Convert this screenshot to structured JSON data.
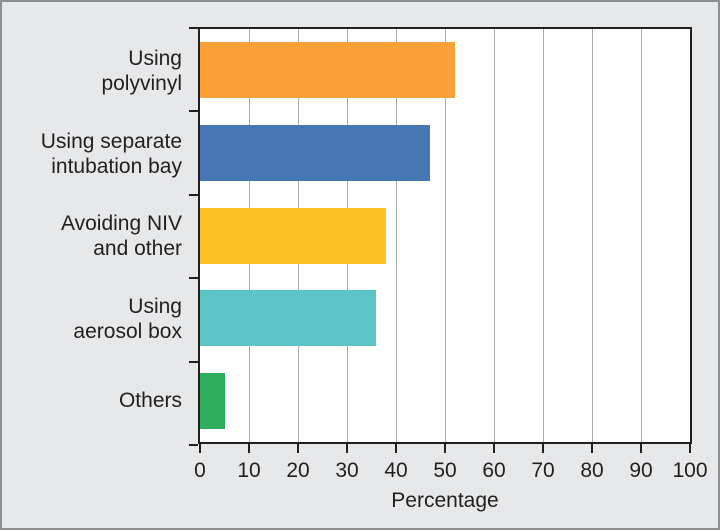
{
  "chart_data": {
    "type": "bar",
    "orientation": "horizontal",
    "title": "",
    "xlabel": "Percentage",
    "ylabel": "",
    "categories": [
      "Using polyvinyl",
      "Using separate intubation bay",
      "Avoiding NIV and other",
      "Using aerosol box",
      "Others"
    ],
    "category_label_lines": [
      [
        "Using",
        "polyvinyl"
      ],
      [
        "Using separate",
        "intubation bay"
      ],
      [
        "Avoiding NIV",
        "and other"
      ],
      [
        "Using",
        "aerosol box"
      ],
      [
        "Others"
      ]
    ],
    "values": [
      52,
      47,
      38,
      36,
      5
    ],
    "bar_colors": [
      "#f7a137",
      "#4677b4",
      "#fdc125",
      "#5bc6c5",
      "#2ead5e"
    ],
    "x_ticks": [
      0,
      10,
      20,
      30,
      40,
      50,
      60,
      70,
      80,
      90,
      100
    ],
    "xlim": [
      0,
      100
    ],
    "grid": "vertical",
    "legend": "none",
    "plot_background": "#ffffff",
    "figure_background": "#e7e8e9",
    "grid_color": "#a7a9ac",
    "axis_color": "#231f20",
    "text_color": "#231f20"
  }
}
